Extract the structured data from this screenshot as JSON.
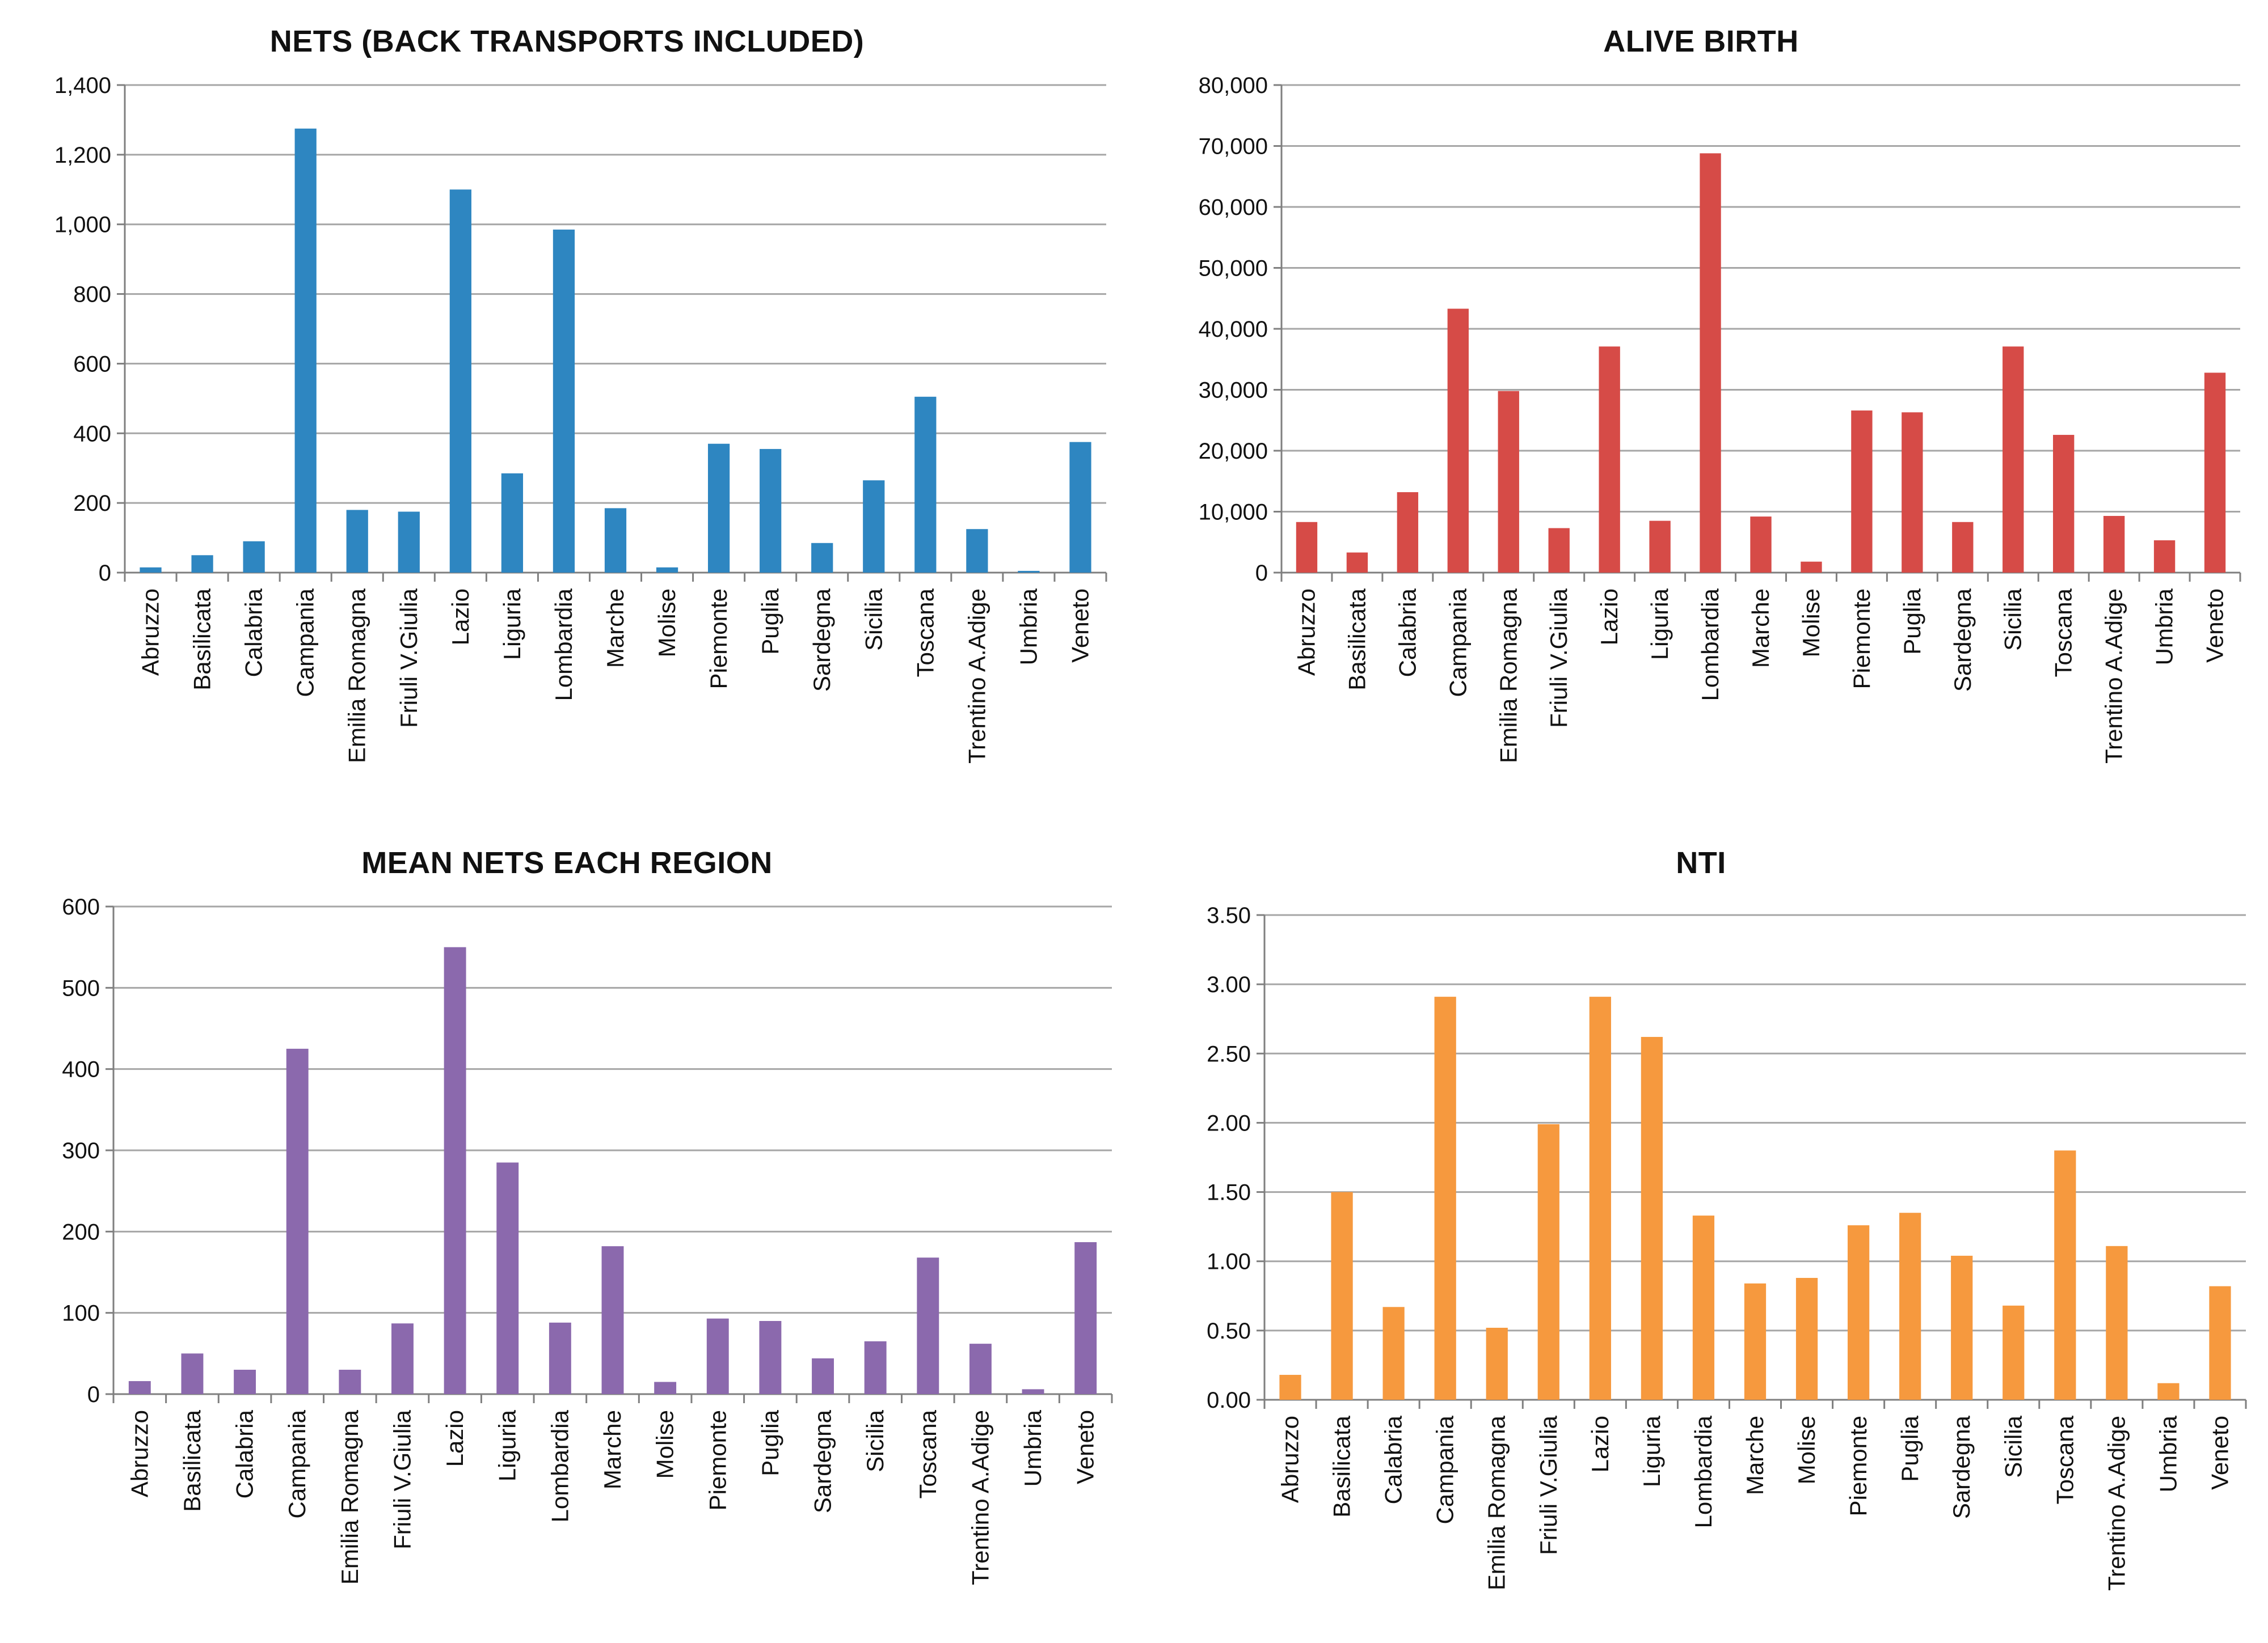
{
  "chart_data": [
    {
      "type": "bar",
      "title": "NETS (BACK TRANSPORTS INCLUDED)",
      "color": "#2e86c1",
      "categories": [
        "Abruzzo",
        "Basilicata",
        "Calabria",
        "Campania",
        "Emilia Romagna",
        "Friuli V.Giulia",
        "Lazio",
        "Liguria",
        "Lombardia",
        "Marche",
        "Molise",
        "Piemonte",
        "Puglia",
        "Sardegna",
        "Sicilia",
        "Toscana",
        "Trentino A.Adige",
        "Umbria",
        "Veneto"
      ],
      "values": [
        15,
        50,
        90,
        1275,
        180,
        175,
        1100,
        285,
        985,
        185,
        15,
        370,
        355,
        85,
        265,
        505,
        125,
        5,
        375
      ],
      "ylim": [
        0,
        1400
      ],
      "yticks": [
        "0",
        "200",
        "400",
        "600",
        "800",
        "1,000",
        "1,200",
        "1,400"
      ],
      "xlabel": "",
      "ylabel": ""
    },
    {
      "type": "bar",
      "title": "ALIVE BIRTH",
      "color": "#d64b47",
      "categories": [
        "Abruzzo",
        "Basilicata",
        "Calabria",
        "Campania",
        "Emilia Romagna",
        "Friuli V.Giulia",
        "Lazio",
        "Liguria",
        "Lombardia",
        "Marche",
        "Molise",
        "Piemonte",
        "Puglia",
        "Sardegna",
        "Sicilia",
        "Toscana",
        "Trentino A.Adige",
        "Umbria",
        "Veneto"
      ],
      "values": [
        8300,
        3300,
        13200,
        43300,
        29800,
        7300,
        37100,
        8500,
        68800,
        9200,
        1800,
        26600,
        26300,
        8300,
        37100,
        22600,
        9300,
        5300,
        32800
      ],
      "ylim": [
        0,
        80000
      ],
      "yticks": [
        "0",
        "10,000",
        "20,000",
        "30,000",
        "40,000",
        "50,000",
        "60,000",
        "70,000",
        "80,000"
      ],
      "xlabel": "",
      "ylabel": ""
    },
    {
      "type": "bar",
      "title": "MEAN NETS EACH REGION",
      "color": "#8b69ad",
      "categories": [
        "Abruzzo",
        "Basilicata",
        "Calabria",
        "Campania",
        "Emilia Romagna",
        "Friuli V.Giulia",
        "Lazio",
        "Liguria",
        "Lombardia",
        "Marche",
        "Molise",
        "Piemonte",
        "Puglia",
        "Sardegna",
        "Sicilia",
        "Toscana",
        "Trentino A.Adige",
        "Umbria",
        "Veneto"
      ],
      "values": [
        16,
        50,
        30,
        425,
        30,
        87,
        550,
        285,
        88,
        182,
        15,
        93,
        90,
        44,
        65,
        168,
        62,
        6,
        187
      ],
      "ylim": [
        0,
        600
      ],
      "yticks": [
        "0",
        "100",
        "200",
        "300",
        "400",
        "500",
        "600"
      ],
      "xlabel": "",
      "ylabel": ""
    },
    {
      "type": "bar",
      "title": "NTI",
      "color": "#f6993e",
      "categories": [
        "Abruzzo",
        "Basilicata",
        "Calabria",
        "Campania",
        "Emilia Romagna",
        "Friuli V.Giulia",
        "Lazio",
        "Liguria",
        "Lombardia",
        "Marche",
        "Molise",
        "Piemonte",
        "Puglia",
        "Sardegna",
        "Sicilia",
        "Toscana",
        "Trentino A.Adige",
        "Umbria",
        "Veneto"
      ],
      "values": [
        0.18,
        1.5,
        0.67,
        2.91,
        0.52,
        1.99,
        2.91,
        2.62,
        1.33,
        0.84,
        0.88,
        1.26,
        1.35,
        1.04,
        0.68,
        1.8,
        1.11,
        0.12,
        0.82
      ],
      "ylim": [
        0,
        3.5
      ],
      "yticks": [
        "0.00",
        "0.50",
        "1.00",
        "1.50",
        "2.00",
        "2.50",
        "3.00",
        "3.50"
      ],
      "xlabel": "",
      "ylabel": ""
    }
  ]
}
